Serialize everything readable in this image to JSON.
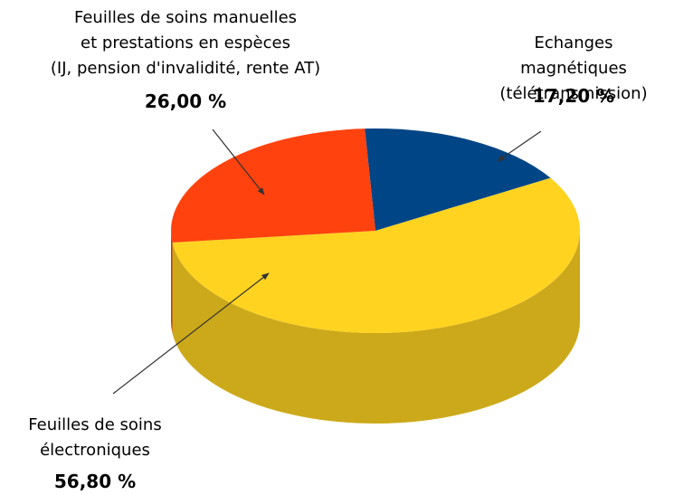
{
  "chart_data": {
    "type": "pie",
    "three_d": true,
    "categories": [
      "Feuilles de soins manuelles\net prestations en espèces\n(IJ, pension d'invalidité, rente AT)",
      "Echanges magnétiques\n(télétransmission)",
      "Feuilles de soins\nélectroniques"
    ],
    "values": [
      26,
      17.2,
      56.8
    ],
    "value_labels": [
      "26,00 %",
      "17,20 %",
      "56,80 %"
    ],
    "colors": [
      "#ff420e",
      "#004586",
      "#ffd320"
    ]
  }
}
